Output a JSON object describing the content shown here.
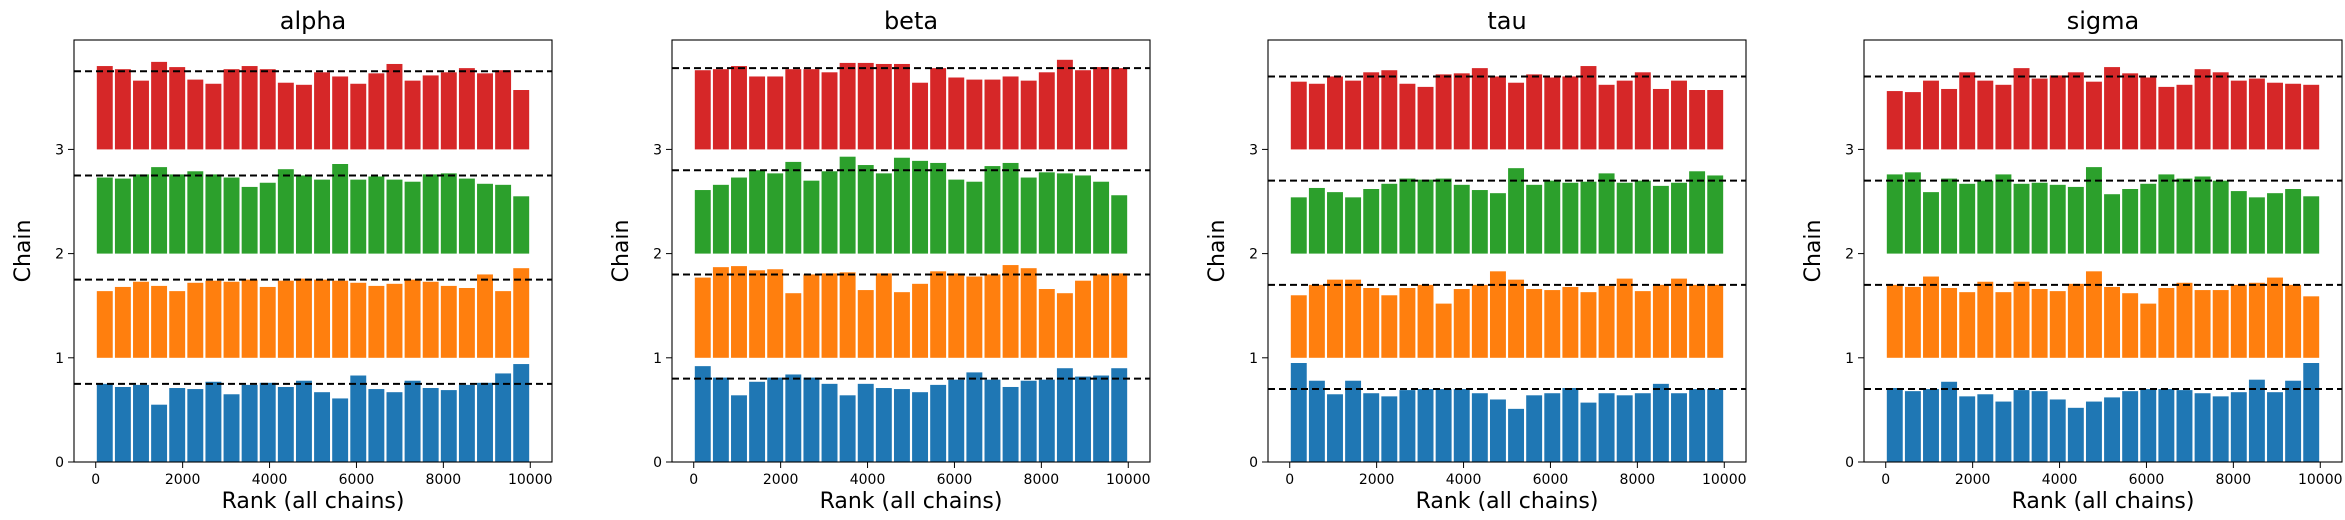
{
  "chart_data": [
    {
      "type": "bar",
      "title": "alpha",
      "xlabel": "Rank (all chains)",
      "ylabel": "Chain",
      "xticks": [
        "0",
        "2000",
        "4000",
        "6000",
        "8000",
        "10000"
      ],
      "yticks": [
        "0",
        "1",
        "2",
        "3"
      ],
      "xlim": [
        -500,
        10500
      ],
      "ylim": [
        0,
        4.05
      ],
      "series": [
        {
          "chain": 0,
          "color": "#1f77b4",
          "reference": 0.75,
          "values": [
            0.75,
            0.72,
            0.74,
            0.55,
            0.71,
            0.7,
            0.77,
            0.65,
            0.74,
            0.76,
            0.72,
            0.78,
            0.67,
            0.61,
            0.83,
            0.7,
            0.67,
            0.78,
            0.71,
            0.69,
            0.74,
            0.76,
            0.85,
            0.94
          ]
        },
        {
          "chain": 1,
          "color": "#ff7f0e",
          "reference": 1.75,
          "values": [
            1.64,
            1.68,
            1.73,
            1.69,
            1.64,
            1.72,
            1.74,
            1.73,
            1.75,
            1.68,
            1.74,
            1.76,
            1.75,
            1.74,
            1.72,
            1.69,
            1.71,
            1.75,
            1.73,
            1.69,
            1.67,
            1.8,
            1.64,
            1.86
          ]
        },
        {
          "chain": 2,
          "color": "#2ca02c",
          "reference": 2.75,
          "values": [
            2.73,
            2.72,
            2.76,
            2.83,
            2.76,
            2.79,
            2.76,
            2.73,
            2.64,
            2.68,
            2.81,
            2.75,
            2.71,
            2.86,
            2.71,
            2.74,
            2.71,
            2.69,
            2.76,
            2.77,
            2.72,
            2.67,
            2.66,
            2.55
          ]
        },
        {
          "chain": 3,
          "color": "#d62728",
          "reference": 3.75,
          "values": [
            3.8,
            3.77,
            3.66,
            3.84,
            3.79,
            3.67,
            3.63,
            3.77,
            3.8,
            3.77,
            3.64,
            3.62,
            3.74,
            3.7,
            3.63,
            3.73,
            3.82,
            3.66,
            3.71,
            3.74,
            3.78,
            3.73,
            3.76,
            3.57
          ]
        }
      ]
    },
    {
      "type": "bar",
      "title": "beta",
      "xlabel": "Rank (all chains)",
      "ylabel": "Chain",
      "xticks": [
        "0",
        "2000",
        "4000",
        "6000",
        "8000",
        "10000"
      ],
      "yticks": [
        "0",
        "1",
        "2",
        "3"
      ],
      "xlim": [
        -500,
        10500
      ],
      "ylim": [
        0,
        4.05
      ],
      "series": [
        {
          "chain": 0,
          "color": "#1f77b4",
          "reference": 0.8,
          "values": [
            0.92,
            0.81,
            0.64,
            0.77,
            0.81,
            0.84,
            0.81,
            0.75,
            0.64,
            0.75,
            0.71,
            0.7,
            0.67,
            0.74,
            0.79,
            0.86,
            0.79,
            0.72,
            0.78,
            0.79,
            0.9,
            0.82,
            0.83,
            0.9
          ]
        },
        {
          "chain": 1,
          "color": "#ff7f0e",
          "reference": 1.8,
          "values": [
            1.77,
            1.87,
            1.88,
            1.84,
            1.85,
            1.62,
            1.8,
            1.81,
            1.82,
            1.65,
            1.81,
            1.63,
            1.71,
            1.83,
            1.81,
            1.78,
            1.8,
            1.89,
            1.86,
            1.66,
            1.62,
            1.74,
            1.8,
            1.81
          ]
        },
        {
          "chain": 2,
          "color": "#2ca02c",
          "reference": 2.8,
          "values": [
            2.61,
            2.66,
            2.73,
            2.8,
            2.77,
            2.88,
            2.7,
            2.79,
            2.93,
            2.85,
            2.77,
            2.92,
            2.89,
            2.87,
            2.71,
            2.69,
            2.84,
            2.87,
            2.73,
            2.78,
            2.77,
            2.75,
            2.69,
            2.56
          ]
        },
        {
          "chain": 3,
          "color": "#d62728",
          "reference": 3.78,
          "values": [
            3.76,
            3.77,
            3.8,
            3.7,
            3.7,
            3.77,
            3.77,
            3.74,
            3.83,
            3.83,
            3.82,
            3.82,
            3.64,
            3.78,
            3.69,
            3.67,
            3.67,
            3.7,
            3.66,
            3.74,
            3.86,
            3.76,
            3.79,
            3.78
          ]
        }
      ]
    },
    {
      "type": "bar",
      "title": "tau",
      "xlabel": "Rank (all chains)",
      "ylabel": "Chain",
      "xticks": [
        "0",
        "2000",
        "4000",
        "6000",
        "8000",
        "10000"
      ],
      "yticks": [
        "0",
        "1",
        "2",
        "3"
      ],
      "xlim": [
        -500,
        10500
      ],
      "ylim": [
        0,
        4.05
      ],
      "series": [
        {
          "chain": 0,
          "color": "#1f77b4",
          "reference": 0.7,
          "values": [
            0.95,
            0.78,
            0.65,
            0.78,
            0.66,
            0.63,
            0.69,
            0.7,
            0.7,
            0.7,
            0.66,
            0.6,
            0.51,
            0.64,
            0.66,
            0.71,
            0.57,
            0.66,
            0.64,
            0.66,
            0.75,
            0.66,
            0.7,
            0.7
          ]
        },
        {
          "chain": 1,
          "color": "#ff7f0e",
          "reference": 1.7,
          "values": [
            1.6,
            1.7,
            1.75,
            1.75,
            1.67,
            1.6,
            1.67,
            1.7,
            1.52,
            1.66,
            1.7,
            1.83,
            1.75,
            1.66,
            1.65,
            1.68,
            1.63,
            1.69,
            1.76,
            1.64,
            1.7,
            1.76,
            1.7,
            1.7
          ]
        },
        {
          "chain": 2,
          "color": "#2ca02c",
          "reference": 2.7,
          "values": [
            2.54,
            2.63,
            2.59,
            2.54,
            2.62,
            2.67,
            2.72,
            2.71,
            2.72,
            2.66,
            2.61,
            2.58,
            2.82,
            2.66,
            2.7,
            2.68,
            2.69,
            2.77,
            2.68,
            2.7,
            2.65,
            2.68,
            2.79,
            2.75
          ]
        },
        {
          "chain": 3,
          "color": "#d62728",
          "reference": 3.7,
          "values": [
            3.65,
            3.63,
            3.7,
            3.66,
            3.74,
            3.76,
            3.63,
            3.6,
            3.72,
            3.73,
            3.78,
            3.7,
            3.64,
            3.72,
            3.69,
            3.7,
            3.8,
            3.62,
            3.66,
            3.74,
            3.58,
            3.66,
            3.57,
            3.57
          ]
        }
      ]
    },
    {
      "type": "bar",
      "title": "sigma",
      "xlabel": "Rank (all chains)",
      "ylabel": "Chain",
      "xticks": [
        "0",
        "2000",
        "4000",
        "6000",
        "8000",
        "10000"
      ],
      "yticks": [
        "0",
        "1",
        "2",
        "3"
      ],
      "xlim": [
        -500,
        10500
      ],
      "ylim": [
        0,
        4.05
      ],
      "series": [
        {
          "chain": 0,
          "color": "#1f77b4",
          "reference": 0.7,
          "values": [
            0.71,
            0.68,
            0.7,
            0.77,
            0.63,
            0.65,
            0.58,
            0.69,
            0.68,
            0.6,
            0.52,
            0.58,
            0.62,
            0.68,
            0.7,
            0.7,
            0.69,
            0.66,
            0.63,
            0.67,
            0.79,
            0.67,
            0.78,
            0.95
          ]
        },
        {
          "chain": 1,
          "color": "#ff7f0e",
          "reference": 1.7,
          "values": [
            1.7,
            1.68,
            1.78,
            1.67,
            1.63,
            1.73,
            1.63,
            1.73,
            1.66,
            1.64,
            1.71,
            1.83,
            1.68,
            1.62,
            1.52,
            1.67,
            1.72,
            1.65,
            1.65,
            1.7,
            1.72,
            1.77,
            1.7,
            1.59
          ]
        },
        {
          "chain": 2,
          "color": "#2ca02c",
          "reference": 2.7,
          "values": [
            2.76,
            2.78,
            2.59,
            2.72,
            2.67,
            2.7,
            2.76,
            2.67,
            2.68,
            2.66,
            2.64,
            2.83,
            2.57,
            2.62,
            2.67,
            2.76,
            2.72,
            2.74,
            2.7,
            2.6,
            2.54,
            2.58,
            2.62,
            2.55
          ]
        },
        {
          "chain": 3,
          "color": "#d62728",
          "reference": 3.7,
          "values": [
            3.56,
            3.55,
            3.66,
            3.58,
            3.74,
            3.66,
            3.62,
            3.78,
            3.68,
            3.71,
            3.74,
            3.65,
            3.79,
            3.73,
            3.69,
            3.6,
            3.62,
            3.77,
            3.74,
            3.66,
            3.68,
            3.64,
            3.63,
            3.62
          ]
        }
      ]
    }
  ]
}
